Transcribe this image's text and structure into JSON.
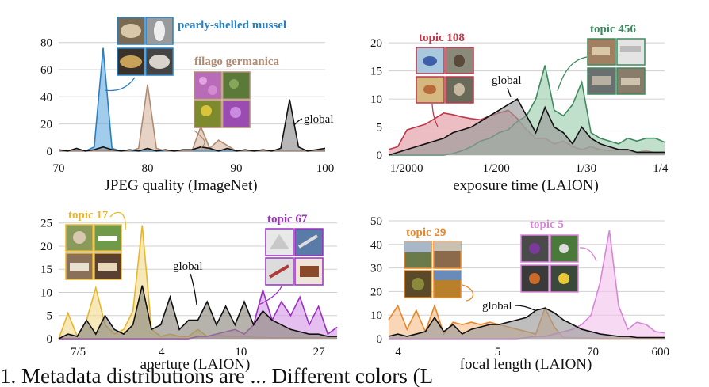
{
  "caption": "1. Metadata distributions are ... Different colors (L",
  "chart_data": [
    {
      "type": "area",
      "xlabel": "JPEG quality (ImageNet)",
      "ylabel": "",
      "x_ticks": [
        "70",
        "80",
        "90",
        "100"
      ],
      "y_ticks": [
        "0",
        "20",
        "40",
        "60",
        "80"
      ],
      "xlim": [
        70,
        100
      ],
      "ylim": [
        -3,
        88
      ],
      "grid": true,
      "series": [
        {
          "name": "pearly-shelled mussel",
          "color": "#2a7fc1",
          "fill": "#6fb0e0",
          "x": [
            70,
            73,
            74,
            75,
            76,
            77,
            80,
            85,
            90,
            95,
            100
          ],
          "values": [
            0,
            0,
            3,
            76,
            2,
            0,
            0,
            0,
            0,
            0,
            0
          ]
        },
        {
          "name": "filago germanica",
          "color": "#b08a72",
          "fill": "#d9bca8",
          "x": [
            70,
            78,
            79,
            80,
            81,
            82,
            85,
            86,
            87,
            88,
            90,
            100
          ],
          "values": [
            0,
            0,
            2,
            49,
            2,
            0,
            0,
            18,
            2,
            8,
            0,
            0
          ]
        },
        {
          "name": "global",
          "color": "#111111",
          "fill": "#909090",
          "x": [
            70,
            71,
            72,
            73,
            74,
            75,
            76,
            77,
            78,
            79,
            80,
            81,
            82,
            83,
            84,
            85,
            86,
            87,
            88,
            89,
            90,
            91,
            92,
            93,
            94,
            95,
            96,
            97,
            98,
            99,
            100
          ],
          "values": [
            1,
            0,
            2,
            0,
            1,
            3,
            1,
            0,
            1,
            0,
            2,
            0,
            1,
            0,
            1,
            1,
            3,
            2,
            0,
            2,
            0,
            1,
            0,
            1,
            0,
            2,
            38,
            3,
            0,
            1,
            2
          ]
        }
      ]
    },
    {
      "type": "area",
      "xlabel": "exposure time (LAION)",
      "ylabel": "",
      "x_ticks": [
        "1/2000",
        "1/200",
        "1/30",
        "1/4"
      ],
      "y_ticks": [
        "0",
        "5",
        "10",
        "15",
        "20"
      ],
      "xlim": [
        0,
        30
      ],
      "ylim": [
        0,
        22
      ],
      "grid": true,
      "series": [
        {
          "name": "topic 108",
          "color": "#c0364a",
          "fill": "#e49aa4",
          "x": [
            0,
            1,
            2,
            3,
            4,
            5,
            6,
            7,
            8,
            9,
            10,
            11,
            12,
            13,
            14,
            15,
            16,
            17,
            18,
            19,
            20,
            21,
            22,
            23,
            24,
            25,
            26,
            27,
            28,
            29,
            30
          ],
          "values": [
            1,
            1.5,
            4.5,
            5,
            5.5,
            6.5,
            7.5,
            7.2,
            6.8,
            6.5,
            6.3,
            7,
            7.5,
            8,
            6.5,
            4.5,
            3,
            3,
            2,
            2.5,
            1.5,
            1,
            1.5,
            1,
            0.8,
            1,
            0.8,
            0.5,
            0.8,
            0.4,
            0.5
          ]
        },
        {
          "name": "topic 456",
          "color": "#3e8a5e",
          "fill": "#9fcfb0",
          "x": [
            0,
            1,
            2,
            3,
            4,
            5,
            6,
            7,
            8,
            9,
            10,
            11,
            12,
            13,
            14,
            15,
            16,
            17,
            18,
            19,
            20,
            21,
            22,
            23,
            24,
            25,
            26,
            27,
            28,
            29,
            30
          ],
          "values": [
            0,
            0,
            0,
            0,
            0,
            0,
            0,
            0.3,
            0.8,
            1.5,
            2.5,
            3,
            4,
            4.5,
            6,
            7,
            10,
            16,
            8,
            7,
            9,
            13,
            4,
            3,
            2.5,
            2,
            3,
            2.5,
            3,
            3,
            2.3
          ]
        },
        {
          "name": "global",
          "color": "#111111",
          "fill": "#9a9a9a",
          "x": [
            0,
            1,
            2,
            3,
            4,
            5,
            6,
            7,
            8,
            9,
            10,
            11,
            12,
            13,
            14,
            15,
            16,
            17,
            18,
            19,
            20,
            21,
            22,
            23,
            24,
            25,
            26,
            27,
            28,
            29,
            30
          ],
          "values": [
            0,
            0.5,
            1,
            1.5,
            2,
            2.5,
            3,
            4,
            4.5,
            5,
            6,
            7,
            8,
            9,
            10,
            7,
            4,
            8.5,
            5,
            4,
            2,
            5,
            3,
            2,
            1.5,
            1,
            1,
            0.5,
            0.5,
            0.5,
            0.5
          ]
        }
      ]
    },
    {
      "type": "area",
      "xlabel": "aperture (LAION)",
      "ylabel": "",
      "x_ticks": [
        "7/5",
        "4",
        "10",
        "27"
      ],
      "y_ticks": [
        "0",
        "5",
        "10",
        "15",
        "20",
        "25"
      ],
      "xlim": [
        0,
        30
      ],
      "ylim": [
        0,
        27
      ],
      "grid": true,
      "series": [
        {
          "name": "topic 17",
          "color": "#e8b62c",
          "fill": "#f3dc95",
          "x": [
            0,
            1,
            2,
            3,
            4,
            5,
            6,
            7,
            8,
            9,
            10,
            11,
            12,
            13,
            14,
            15,
            16,
            17,
            18,
            19,
            20,
            21,
            22,
            23,
            24,
            25,
            26,
            27,
            28,
            29,
            30
          ],
          "values": [
            0,
            5.5,
            0.5,
            4,
            11,
            3,
            1,
            2,
            6,
            24.5,
            2,
            0.5,
            1,
            0.5,
            0.5,
            2,
            0.5,
            1,
            0.5,
            0.5,
            0.5,
            0.3,
            0.3,
            0.2,
            0.2,
            0.2,
            0.2,
            0.2,
            0.2,
            0.2,
            0.2
          ]
        },
        {
          "name": "topic 67",
          "color": "#9c2fc4",
          "fill": "#d59ce8",
          "x": [
            0,
            1,
            2,
            3,
            4,
            5,
            6,
            7,
            8,
            9,
            10,
            11,
            12,
            13,
            14,
            15,
            16,
            17,
            18,
            19,
            20,
            21,
            22,
            23,
            24,
            25,
            26,
            27,
            28,
            29,
            30
          ],
          "values": [
            0,
            0,
            0,
            0,
            0,
            0,
            0,
            0,
            0,
            0,
            0,
            0,
            0,
            0,
            0,
            0.5,
            0.5,
            1,
            1.5,
            2,
            1,
            3,
            10.5,
            4,
            8,
            5,
            9,
            3,
            7,
            1,
            2.5
          ]
        },
        {
          "name": "global",
          "color": "#111111",
          "fill": "#8e8b7e",
          "x": [
            0,
            1,
            2,
            3,
            4,
            5,
            6,
            7,
            8,
            9,
            10,
            11,
            12,
            13,
            14,
            15,
            16,
            17,
            18,
            19,
            20,
            21,
            22,
            23,
            24,
            25,
            26,
            27,
            28,
            29,
            30
          ],
          "values": [
            0,
            1,
            0.5,
            4,
            1,
            5,
            2,
            1,
            3,
            11.5,
            2,
            3,
            9,
            2,
            4,
            4,
            8,
            3,
            7,
            3,
            8,
            3,
            6,
            4,
            3,
            2,
            1.5,
            1,
            1,
            0.5,
            0.5
          ]
        }
      ]
    },
    {
      "type": "area",
      "xlabel": "focal length (LAION)",
      "ylabel": "",
      "x_ticks": [
        "4",
        "5",
        "70",
        "600"
      ],
      "y_ticks": [
        "0",
        "10",
        "20",
        "30",
        "40",
        "50"
      ],
      "xlim": [
        0,
        30
      ],
      "ylim": [
        0,
        53
      ],
      "grid": true,
      "series": [
        {
          "name": "topic 29",
          "color": "#e8872a",
          "fill": "#f5c08f",
          "x": [
            0,
            1,
            2,
            3,
            4,
            5,
            6,
            7,
            8,
            9,
            10,
            11,
            12,
            13,
            14,
            15,
            16,
            17,
            18,
            19,
            20,
            21,
            22,
            23,
            24,
            25,
            26,
            27,
            28,
            29,
            30
          ],
          "values": [
            8,
            14,
            4,
            12,
            3,
            14,
            2,
            7,
            6,
            7,
            6,
            7,
            6,
            5,
            4,
            3,
            2,
            13,
            5,
            0.5,
            0.5,
            0.3,
            0.3,
            0.2,
            0.2,
            0.2,
            0.2,
            0.2,
            0.2,
            0.2,
            0.2
          ]
        },
        {
          "name": "topic 5",
          "color": "#d886d8",
          "fill": "#f2c4ee",
          "x": [
            0,
            1,
            2,
            3,
            4,
            5,
            6,
            7,
            8,
            9,
            10,
            11,
            12,
            13,
            14,
            15,
            16,
            17,
            18,
            19,
            20,
            21,
            22,
            23,
            24,
            25,
            26,
            27,
            28,
            29,
            30
          ],
          "values": [
            0,
            0,
            0,
            0,
            0,
            0,
            0,
            0,
            0,
            0,
            0,
            0,
            0,
            0,
            0,
            0.5,
            1,
            1,
            2,
            3,
            4,
            6,
            10,
            24,
            46,
            14,
            4,
            7,
            6,
            3,
            2.5
          ]
        },
        {
          "name": "global",
          "color": "#111111",
          "fill": "#9b9b9b",
          "x": [
            0,
            1,
            2,
            3,
            4,
            5,
            6,
            7,
            8,
            9,
            10,
            11,
            12,
            13,
            14,
            15,
            16,
            17,
            18,
            19,
            20,
            21,
            22,
            23,
            24,
            25,
            26,
            27,
            28,
            29,
            30
          ],
          "values": [
            1,
            2,
            1,
            2,
            3,
            9,
            3,
            6,
            2,
            4,
            5,
            6,
            6,
            7,
            8,
            9,
            12,
            13,
            11,
            8,
            6,
            4,
            3,
            2,
            1.5,
            1,
            1,
            0.5,
            0.5,
            0.5,
            0.5
          ]
        }
      ]
    }
  ]
}
